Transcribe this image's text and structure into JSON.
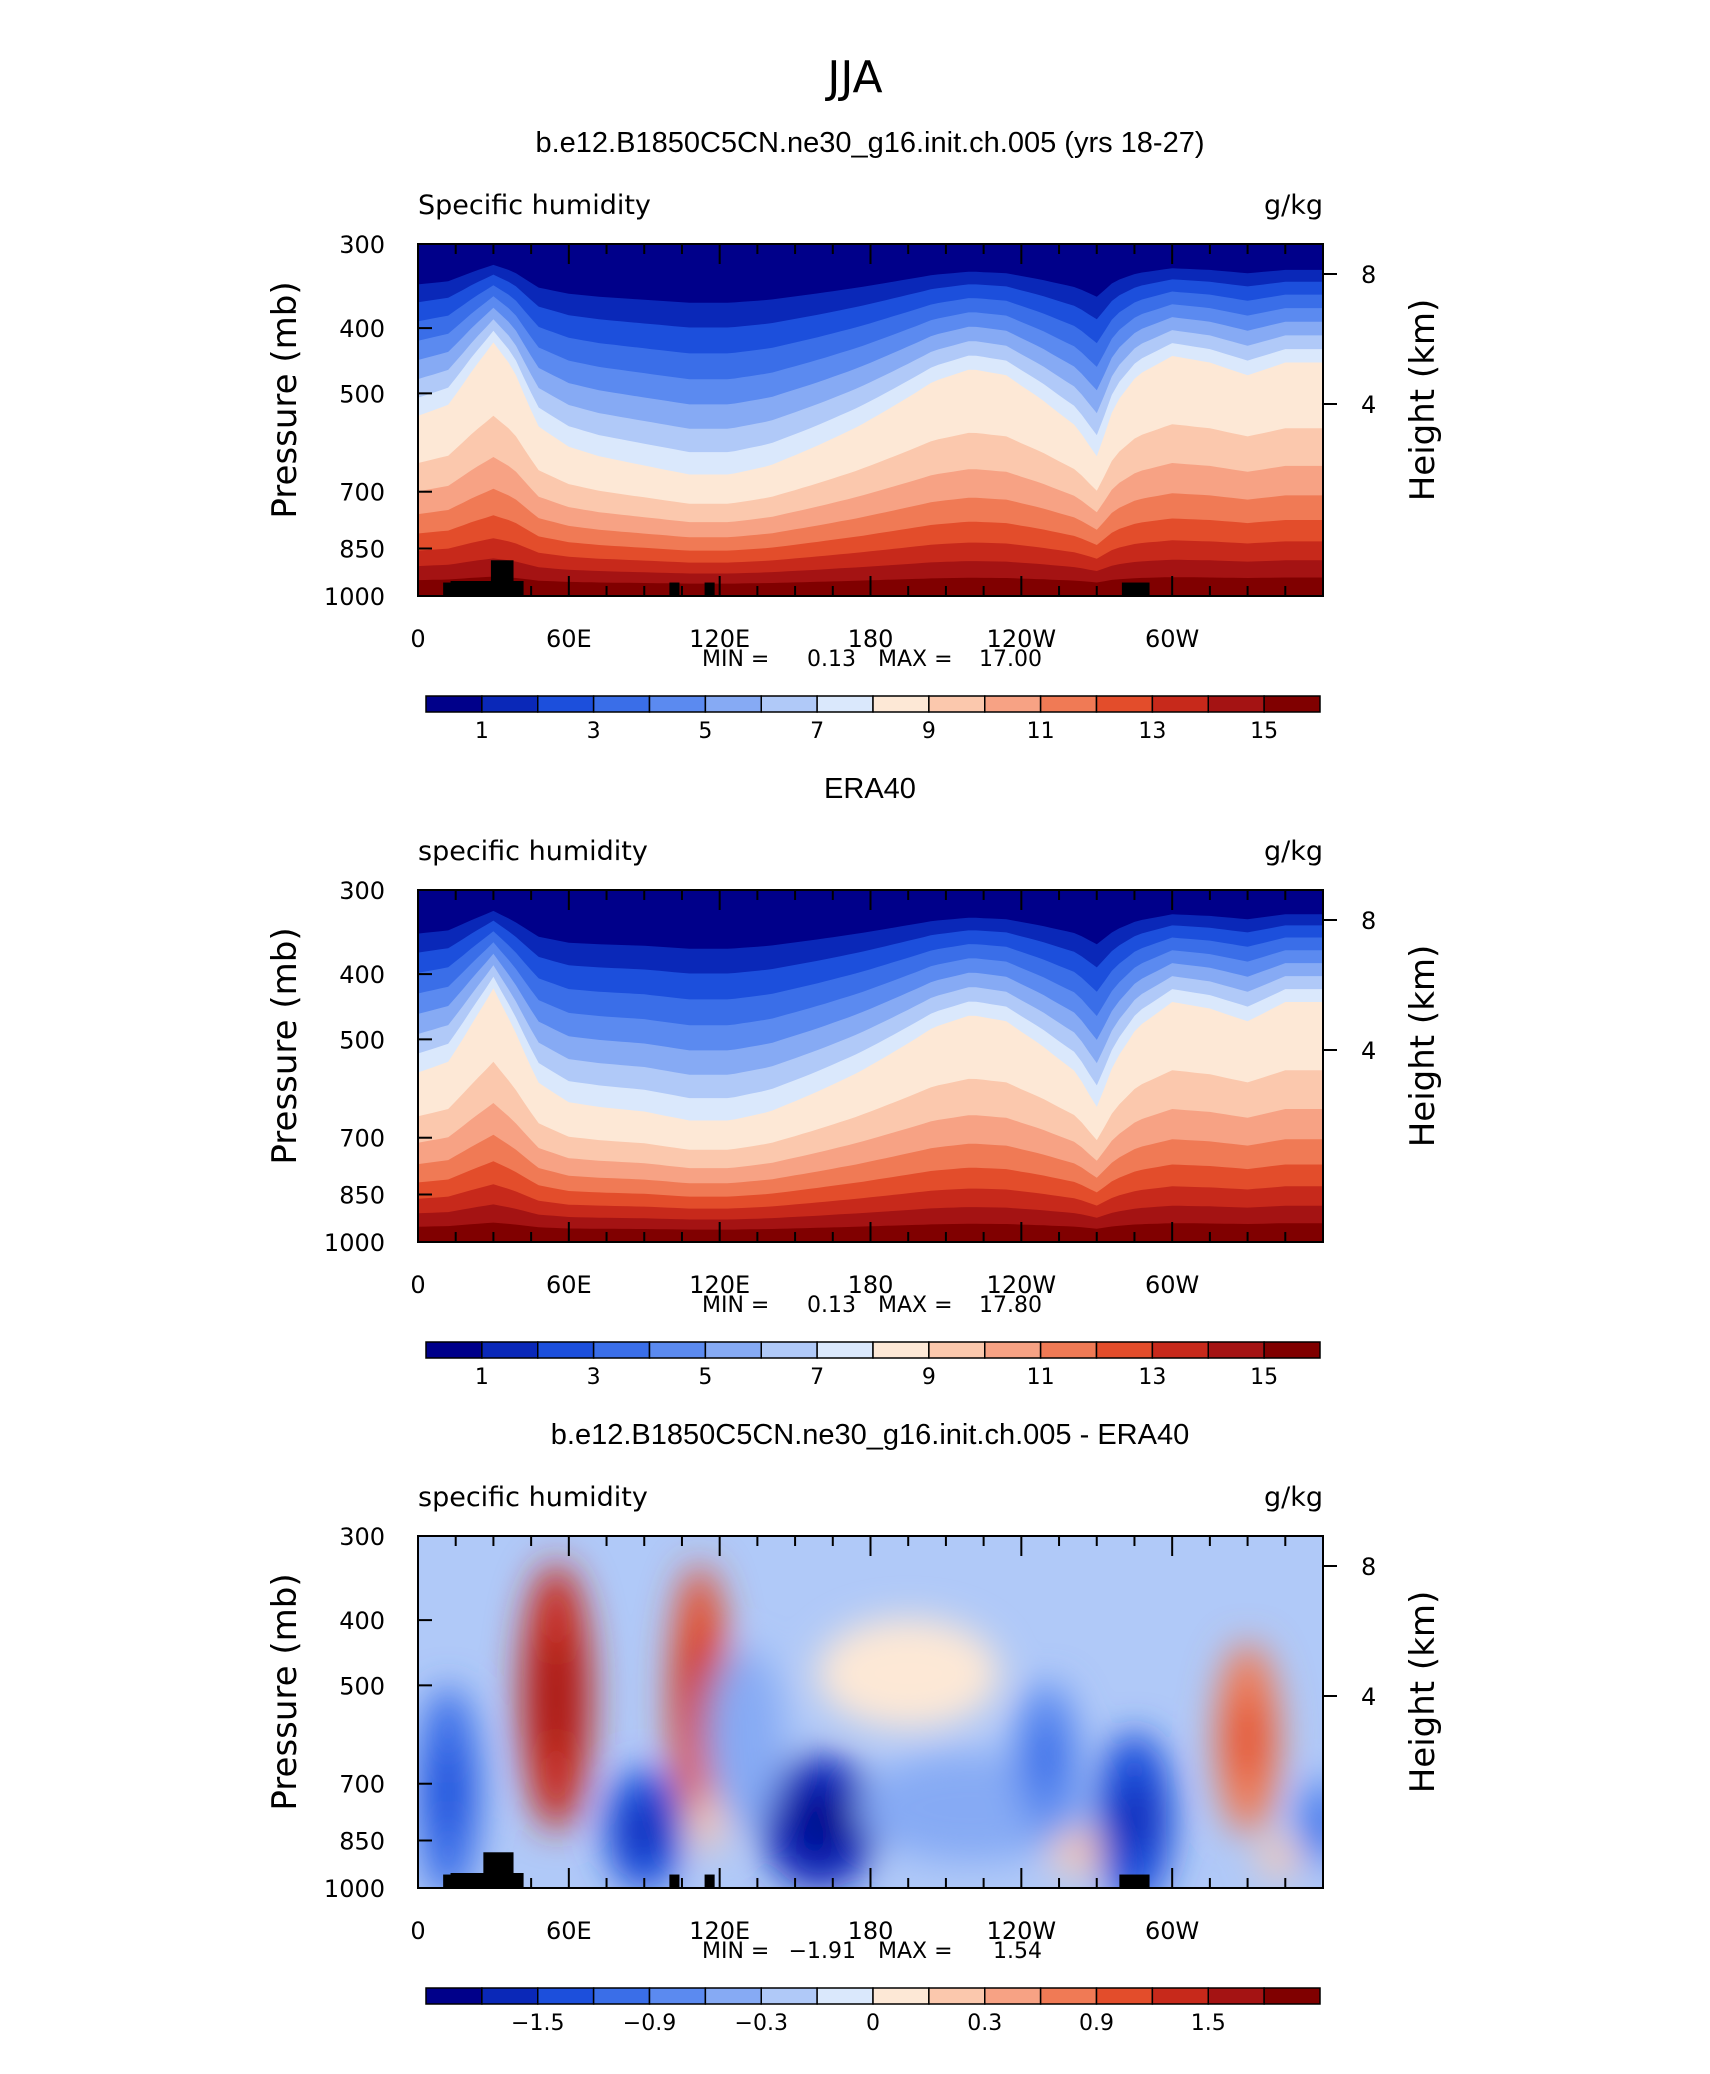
{
  "figure_title": "JJA",
  "chart_data": [
    {
      "type": "heatmap",
      "title": "b.e12.B1850C5CN.ne30_g16.init.ch.005 (yrs 18-27)",
      "left_label": "Specific humidity",
      "right_label": "g/kg",
      "ylabel": "Pressure (mb)",
      "y2label": "Height (km)",
      "y_ticks": [
        "300",
        "400",
        "500",
        "700",
        "850",
        "1000"
      ],
      "y2_ticks": [
        "8",
        "4"
      ],
      "x_ticks": [
        "0",
        "60E",
        "120E",
        "180",
        "120W",
        "60W"
      ],
      "stats": {
        "min_label": "MIN =",
        "min": "0.13",
        "max_label": "MAX =",
        "max": "17.00"
      },
      "colorbar_labels": [
        "1",
        "3",
        "5",
        "7",
        "9",
        "11",
        "13",
        "15"
      ],
      "profile": [
        [
          0,
          540
        ],
        [
          12,
          520
        ],
        [
          22,
          460
        ],
        [
          30,
          420
        ],
        [
          38,
          460
        ],
        [
          48,
          560
        ],
        [
          60,
          600
        ],
        [
          72,
          620
        ],
        [
          90,
          640
        ],
        [
          108,
          660
        ],
        [
          124,
          660
        ],
        [
          140,
          640
        ],
        [
          158,
          600
        ],
        [
          175,
          560
        ],
        [
          190,
          520
        ],
        [
          205,
          480
        ],
        [
          220,
          460
        ],
        [
          234,
          470
        ],
        [
          248,
          510
        ],
        [
          262,
          560
        ],
        [
          270,
          620
        ],
        [
          277,
          520
        ],
        [
          286,
          470
        ],
        [
          300,
          440
        ],
        [
          315,
          450
        ],
        [
          330,
          470
        ],
        [
          345,
          450
        ],
        [
          360,
          450
        ]
      ]
    },
    {
      "type": "heatmap",
      "title": "ERA40",
      "left_label": "specific humidity",
      "right_label": "g/kg",
      "ylabel": "Pressure (mb)",
      "y2label": "Height (km)",
      "y_ticks": [
        "300",
        "400",
        "500",
        "700",
        "850",
        "1000"
      ],
      "y2_ticks": [
        "8",
        "4"
      ],
      "x_ticks": [
        "0",
        "60E",
        "120E",
        "180",
        "120W",
        "60W"
      ],
      "stats": {
        "min_label": "MIN =",
        "min": "0.13",
        "max_label": "MAX =",
        "max": "17.80"
      },
      "colorbar_labels": [
        "1",
        "3",
        "5",
        "7",
        "9",
        "11",
        "13",
        "15"
      ],
      "profile": [
        [
          0,
          560
        ],
        [
          12,
          540
        ],
        [
          22,
          470
        ],
        [
          30,
          420
        ],
        [
          38,
          480
        ],
        [
          48,
          580
        ],
        [
          60,
          620
        ],
        [
          72,
          630
        ],
        [
          90,
          640
        ],
        [
          108,
          660
        ],
        [
          124,
          660
        ],
        [
          140,
          640
        ],
        [
          158,
          600
        ],
        [
          175,
          560
        ],
        [
          190,
          520
        ],
        [
          205,
          480
        ],
        [
          220,
          460
        ],
        [
          234,
          470
        ],
        [
          248,
          510
        ],
        [
          262,
          560
        ],
        [
          270,
          630
        ],
        [
          277,
          540
        ],
        [
          286,
          480
        ],
        [
          300,
          440
        ],
        [
          315,
          450
        ],
        [
          330,
          470
        ],
        [
          345,
          440
        ],
        [
          360,
          440
        ]
      ]
    },
    {
      "type": "heatmap",
      "title": "b.e12.B1850C5CN.ne30_g16.init.ch.005 - ERA40",
      "left_label": "specific humidity",
      "right_label": "g/kg",
      "ylabel": "Pressure (mb)",
      "y2label": "Height (km)",
      "y_ticks": [
        "300",
        "400",
        "500",
        "700",
        "850",
        "1000"
      ],
      "y2_ticks": [
        "8",
        "4"
      ],
      "x_ticks": [
        "0",
        "60E",
        "120E",
        "180",
        "120W",
        "60W"
      ],
      "stats": {
        "min_label": "MIN =",
        "min": "−1.91",
        "max_label": "MAX =",
        "max": "1.54"
      },
      "colorbar_labels": [
        "−1.5",
        "−0.9",
        "−0.3",
        "0",
        "0.3",
        "0.9",
        "1.5"
      ],
      "anomalies": [
        {
          "lon": 55,
          "p": 520,
          "dlon": 11,
          "dp": 230,
          "v": 1.5
        },
        {
          "lon": 112,
          "p": 520,
          "dlon": 9,
          "dp": 220,
          "v": 1.3
        },
        {
          "lon": 115,
          "p": 800,
          "dlon": 5,
          "dp": 80,
          "v": 0.3
        },
        {
          "lon": 330,
          "p": 600,
          "dlon": 10,
          "dp": 190,
          "v": 0.9
        },
        {
          "lon": 262,
          "p": 880,
          "dlon": 8,
          "dp": 70,
          "v": 0.5
        },
        {
          "lon": 342,
          "p": 900,
          "dlon": 6,
          "dp": 60,
          "v": 0.3
        },
        {
          "lon": 195,
          "p": 480,
          "dlon": 28,
          "dp": 90,
          "v": 0.25
        },
        {
          "lon": 160,
          "p": 800,
          "dlon": 18,
          "dp": 180,
          "v": -1.9
        },
        {
          "lon": 90,
          "p": 820,
          "dlon": 12,
          "dp": 170,
          "v": -1.6
        },
        {
          "lon": 12,
          "p": 720,
          "dlon": 10,
          "dp": 250,
          "v": -1.2
        },
        {
          "lon": 285,
          "p": 790,
          "dlon": 12,
          "dp": 240,
          "v": -1.5
        },
        {
          "lon": 220,
          "p": 760,
          "dlon": 35,
          "dp": 140,
          "v": -0.8
        },
        {
          "lon": 130,
          "p": 600,
          "dlon": 12,
          "dp": 180,
          "v": -0.6
        },
        {
          "lon": 250,
          "p": 640,
          "dlon": 10,
          "dp": 160,
          "v": -0.9
        },
        {
          "lon": 360,
          "p": 800,
          "dlon": 8,
          "dp": 120,
          "v": -1.0
        }
      ]
    }
  ],
  "colors": {
    "colorbar": [
      "#00008a",
      "#0a28b8",
      "#1c4fdc",
      "#3a6ee8",
      "#5b8af0",
      "#86aaf4",
      "#b0c9f8",
      "#dae8fc",
      "#fde8d6",
      "#fbc8ad",
      "#f7a284",
      "#f07a55",
      "#e34d2b",
      "#c7291b",
      "#a41313",
      "#800000"
    ],
    "land": "#000000"
  }
}
